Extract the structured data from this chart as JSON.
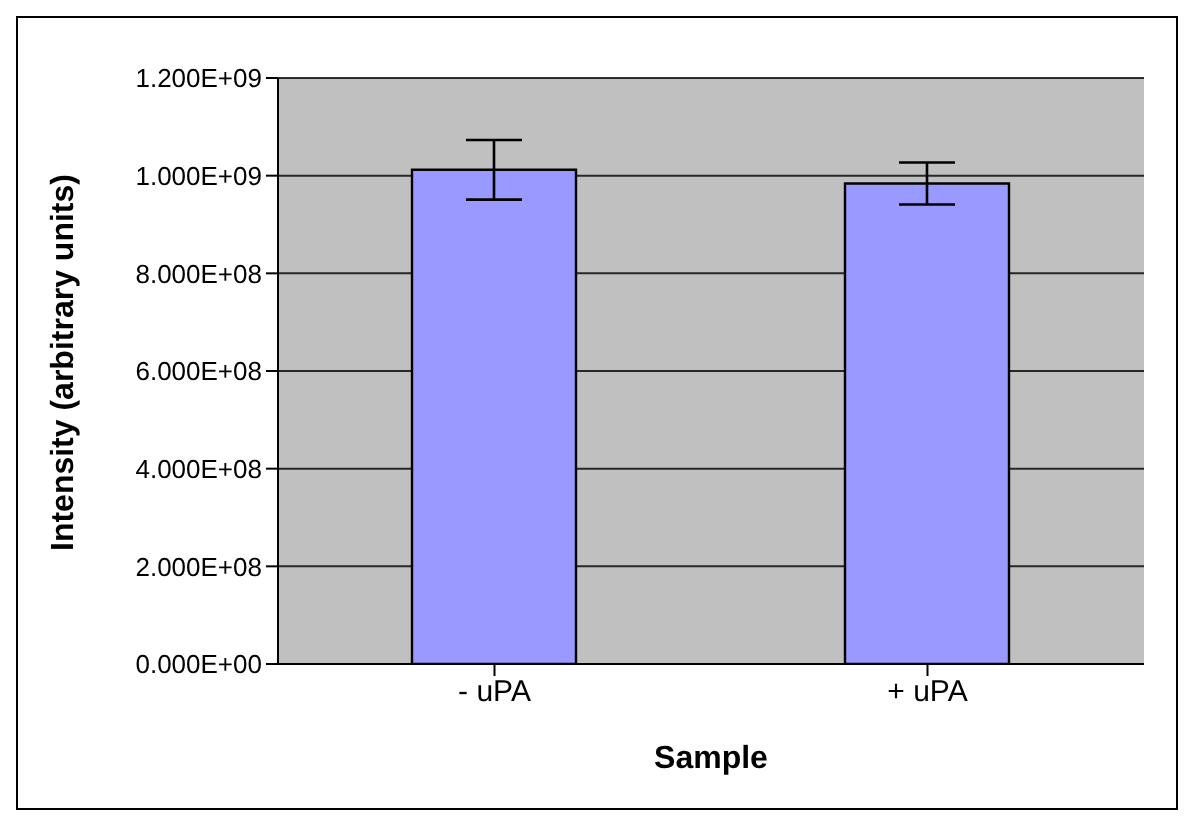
{
  "chart_data": {
    "type": "bar",
    "xlabel": "Sample",
    "ylabel": "Intensity (arbitrary units)",
    "categories": [
      "- uPA",
      "+ uPA"
    ],
    "values": [
      1012000000,
      984000000
    ],
    "errors": [
      61000000,
      43000000
    ],
    "color": "#9999ff",
    "ylim": [
      0,
      1200000000
    ],
    "yticks": [
      {
        "value": 0,
        "label": "0.000E+00"
      },
      {
        "value": 200000000,
        "label": "2.000E+08"
      },
      {
        "value": 400000000,
        "label": "4.000E+08"
      },
      {
        "value": 600000000,
        "label": "6.000E+08"
      },
      {
        "value": 800000000,
        "label": "8.000E+08"
      },
      {
        "value": 1000000000,
        "label": "1.000E+09"
      },
      {
        "value": 1200000000,
        "label": "1.200E+09"
      }
    ],
    "grid": "y",
    "legend": false
  }
}
